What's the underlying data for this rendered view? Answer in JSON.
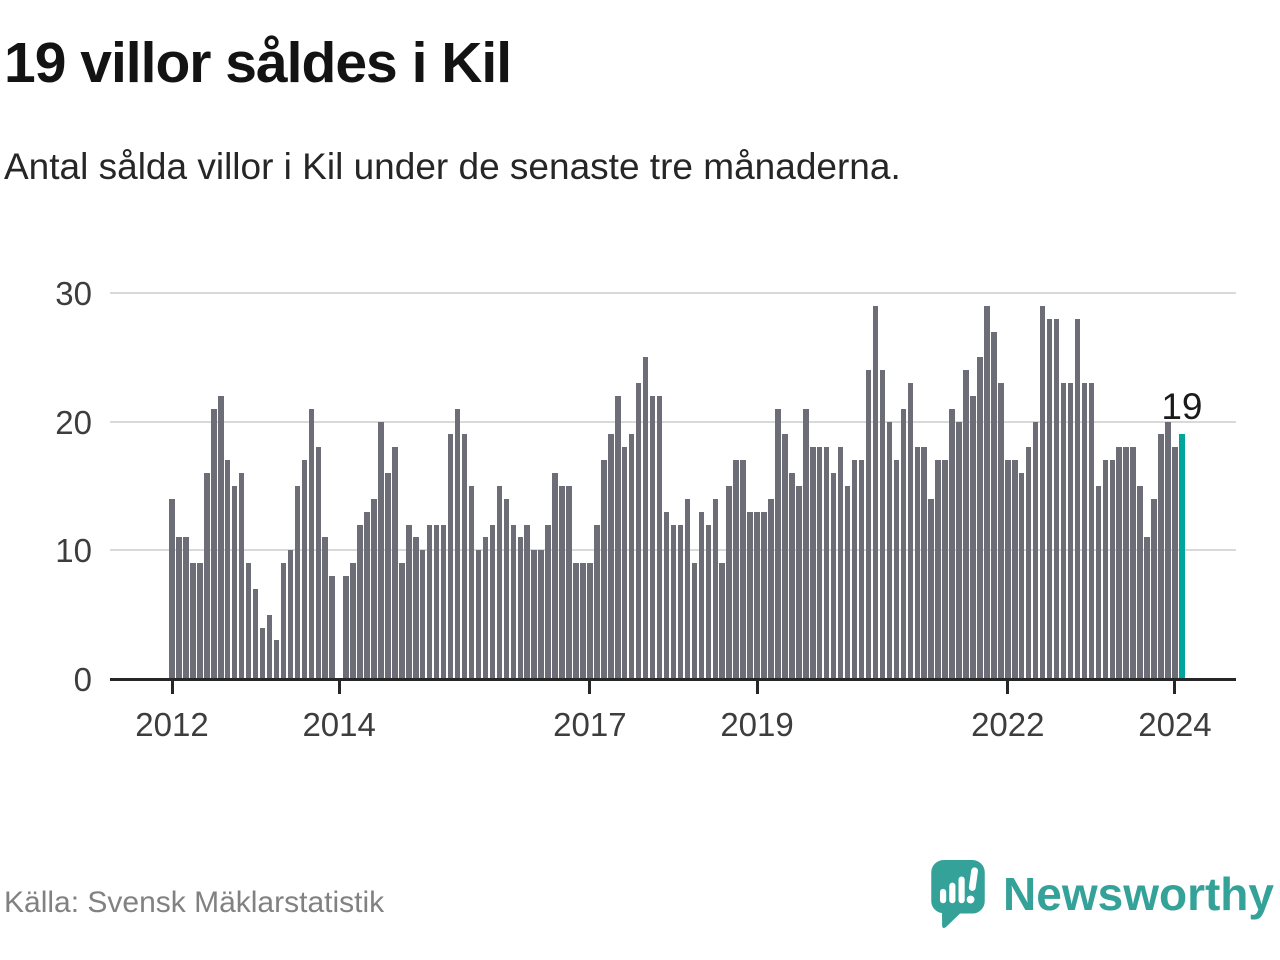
{
  "header": {
    "title": "19 villor såldes i Kil",
    "subtitle": "Antal sålda villor i Kil under de senaste tre månaderna."
  },
  "chart_data": {
    "type": "bar",
    "title": "19 villor såldes i Kil",
    "subtitle": "Antal sålda villor i Kil under de senaste tre månaderna.",
    "x_period_start": "2012-01",
    "x_period_end": "2024-02",
    "x_frequency": "monthly",
    "values": [
      14,
      11,
      11,
      9,
      9,
      16,
      21,
      22,
      17,
      15,
      16,
      9,
      7,
      4,
      5,
      3,
      9,
      10,
      15,
      17,
      21,
      18,
      11,
      8,
      0,
      8,
      9,
      12,
      13,
      14,
      20,
      16,
      18,
      9,
      12,
      11,
      10,
      12,
      12,
      12,
      19,
      21,
      19,
      15,
      10,
      11,
      12,
      15,
      14,
      12,
      11,
      12,
      10,
      10,
      12,
      16,
      15,
      15,
      9,
      9,
      9,
      12,
      17,
      19,
      22,
      18,
      19,
      23,
      25,
      22,
      22,
      13,
      12,
      12,
      14,
      9,
      13,
      12,
      14,
      9,
      15,
      17,
      17,
      13,
      13,
      13,
      14,
      21,
      19,
      16,
      15,
      21,
      18,
      18,
      18,
      16,
      18,
      15,
      17,
      17,
      24,
      29,
      24,
      20,
      17,
      21,
      23,
      18,
      18,
      14,
      17,
      17,
      21,
      20,
      24,
      22,
      25,
      29,
      27,
      23,
      17,
      17,
      16,
      18,
      20,
      29,
      28,
      28,
      23,
      23,
      28,
      23,
      23,
      15,
      17,
      17,
      18,
      18,
      18,
      15,
      11,
      14,
      19,
      20,
      18,
      19
    ],
    "highlight": {
      "index": 145,
      "value": 19,
      "label": "19",
      "color": "#00a69b"
    },
    "bar_color": "#6d6d77",
    "grid": true,
    "ylim": [
      0,
      32
    ],
    "yticks": [
      0,
      10,
      20,
      30
    ],
    "xticks": [
      {
        "label": "2012",
        "month_index": 0
      },
      {
        "label": "2014",
        "month_index": 24
      },
      {
        "label": "2017",
        "month_index": 60
      },
      {
        "label": "2019",
        "month_index": 84
      },
      {
        "label": "2022",
        "month_index": 120
      },
      {
        "label": "2024",
        "month_index": 144
      }
    ],
    "legend": "none"
  },
  "footer": {
    "source": "Källa: Svensk Mäklarstatistik",
    "brand": "Newsworthy"
  }
}
